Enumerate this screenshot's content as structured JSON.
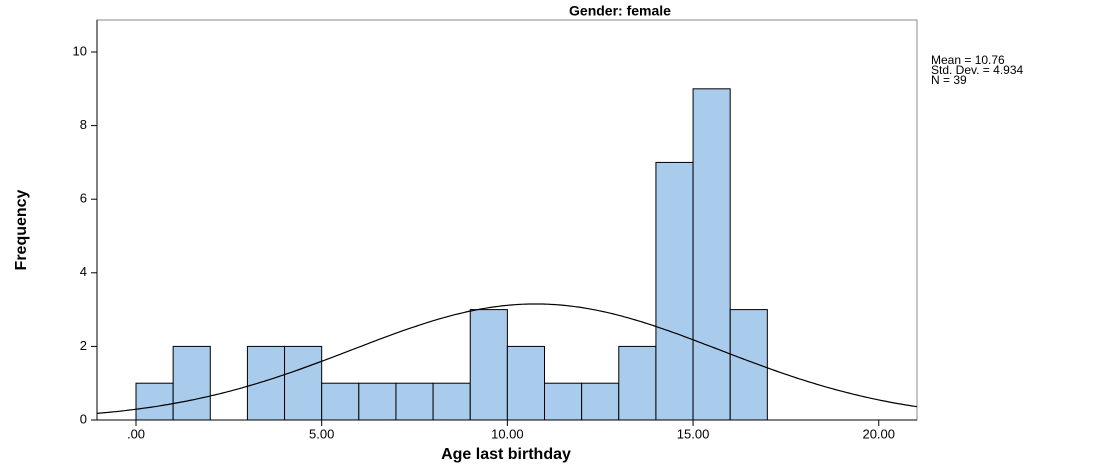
{
  "chart_data": {
    "type": "histogram",
    "title": "Gender: female",
    "x_label": "Age last birthday",
    "y_label": "Frequency",
    "bins": [
      0,
      1,
      2,
      3,
      4,
      5,
      6,
      7,
      8,
      9,
      10,
      11,
      12,
      13,
      14,
      15,
      16,
      17
    ],
    "values": [
      1,
      2,
      0,
      2,
      2,
      1,
      1,
      1,
      1,
      3,
      2,
      1,
      1,
      2,
      7,
      9,
      3
    ],
    "color": "#a9cbec",
    "xlim": [
      -1.05,
      21.03
    ],
    "ylim": [
      0,
      10.87
    ],
    "xticks": [
      {
        "value": 0,
        "label": ".00"
      },
      {
        "value": 5,
        "label": "5.00"
      },
      {
        "value": 10,
        "label": "10.00"
      },
      {
        "value": 15,
        "label": "15.00"
      },
      {
        "value": 20,
        "label": "20.00"
      }
    ],
    "yticks": [
      0,
      2,
      4,
      6,
      8,
      10
    ],
    "stats": [
      {
        "value": 10.76,
        "label": "Mean = 10.76"
      },
      {
        "value": 4.934,
        "label": "Std. Dev. = 4.934"
      },
      {
        "value": 39,
        "label": "N = 39"
      }
    ],
    "normal_curve": true
  }
}
